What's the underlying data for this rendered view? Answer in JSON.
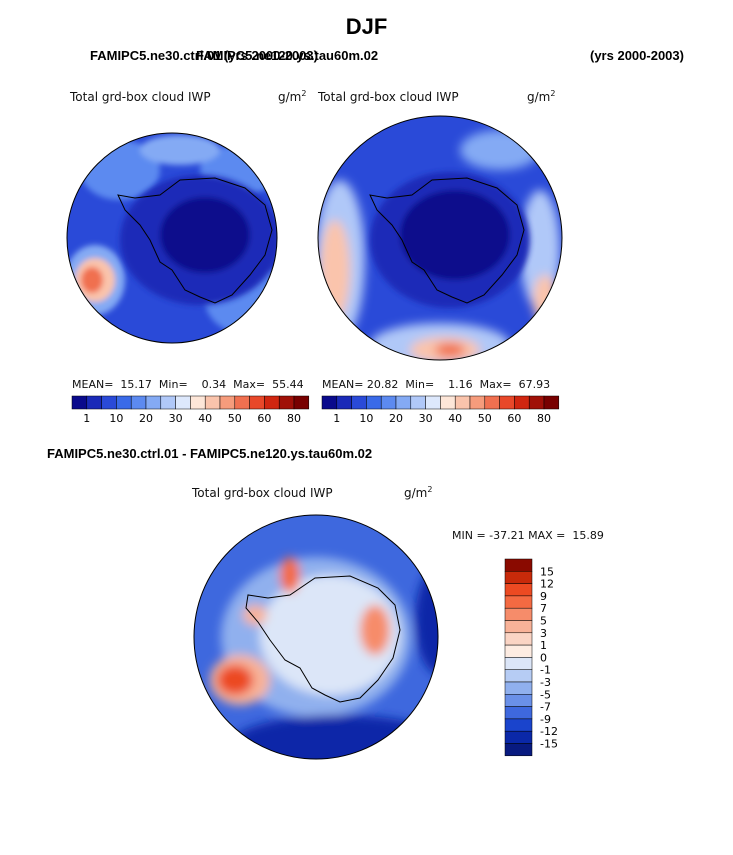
{
  "page": {
    "title": "DJF",
    "left_run": "FAMIPC5.ne30.ctrl.01",
    "right_run_overlap": "FAMIPC5.ne120.ys.tau60m.02",
    "left_years": "(yrs 2000-2003)",
    "right_years": "(yrs 2000-2003)"
  },
  "panels": {
    "left": {
      "label": "Total grd-box cloud IWP",
      "units": "g/m",
      "units_exp": "2",
      "mean_label": "MEAN=",
      "mean": "15.17",
      "min_label": "Min=",
      "min": "0.34",
      "max_label": "Max=",
      "max": "55.44"
    },
    "right": {
      "label": "Total grd-box cloud IWP",
      "units": "g/m",
      "units_exp": "2",
      "mean_label": "MEAN=",
      "mean": "20.82",
      "min_label": "Min=",
      "min": "1.16",
      "max_label": "Max=",
      "max": "67.93"
    },
    "diff": {
      "title": "FAMIPC5.ne30.ctrl.01 - FAMIPC5.ne120.ys.tau60m.02",
      "label": "Total grd-box cloud IWP",
      "units": "g/m",
      "units_exp": "2",
      "minmax": "MIN = -37.21 MAX =  15.89"
    }
  },
  "colorbar": {
    "ticks": [
      "1",
      "10",
      "20",
      "30",
      "40",
      "50",
      "60",
      "80"
    ],
    "colors": [
      "#0a0a8c",
      "#1a2ab8",
      "#2a4ad8",
      "#3a6ae8",
      "#5c8af0",
      "#84aaf4",
      "#b0c8f8",
      "#dde8fc",
      "#fde6d8",
      "#fac4ac",
      "#f69c7c",
      "#f07050",
      "#e8482a",
      "#d02610",
      "#a01008",
      "#780000"
    ]
  },
  "diff_colorbar": {
    "labels": [
      "15",
      "12",
      "9",
      "7",
      "5",
      "3",
      "1",
      "0",
      "-1",
      "-3",
      "-5",
      "-7",
      "-9",
      "-12",
      "-15"
    ],
    "colors": [
      "#8a0a00",
      "#c82a0a",
      "#ec4a22",
      "#f46a42",
      "#f68c6a",
      "#f8b298",
      "#fad4c4",
      "#fdece2",
      "#dce6f8",
      "#b6ccf4",
      "#90b0ee",
      "#6a90e8",
      "#3e68de",
      "#1a44cc",
      "#0a28a8",
      "#081a80"
    ]
  },
  "colors": {
    "deep": "#0a0a8c",
    "ocean_blue": "#2a4ad8",
    "mid_blue": "#5c8af0",
    "light_blue": "#b0c8f8",
    "pale": "#dde8fc",
    "warm": "#f69c7c",
    "hot": "#e8482a"
  }
}
